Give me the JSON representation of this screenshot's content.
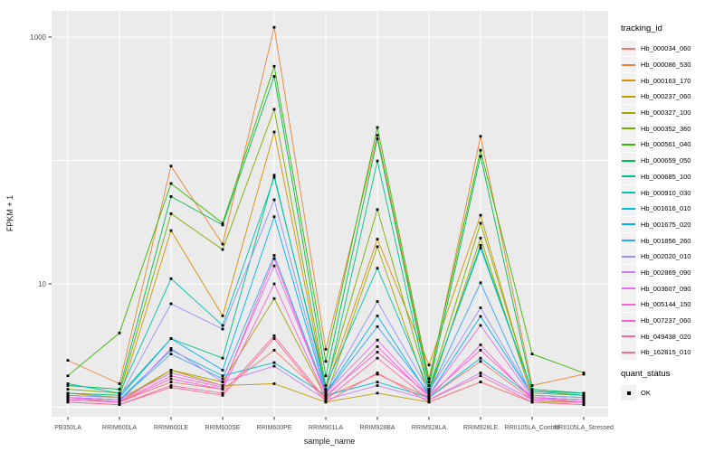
{
  "figure": {
    "y_axis": {
      "label": "FPKM + 1",
      "tick_labels": [
        "1000",
        "10"
      ],
      "tick_values": [
        1000,
        10
      ]
    },
    "x_axis": {
      "label": "sample_name"
    },
    "legend": {
      "title": "tracking_id"
    },
    "quant_legend": {
      "title": "quant_status",
      "ok_label": "OK"
    }
  },
  "colors": {
    "panel_bg": "#EBEBEB",
    "grid": "#FFFFFF",
    "point": "#000000",
    "tick_text": "#4D4D4D",
    "tick_mark": "#333333",
    "legend_key_bg": "#F2F2F2"
  },
  "chart_data": {
    "type": "line",
    "title": "",
    "xlabel": "sample_name",
    "ylabel": "FPKM + 1",
    "y_scale": "log10",
    "ylim": [
      1,
      1300
    ],
    "y_labeled_breaks": [
      10,
      1000
    ],
    "y_gridlines": [
      1,
      10,
      100,
      1000
    ],
    "grid": true,
    "legend_position": "right",
    "point_marker": "black-square",
    "categories": [
      "PB350LA",
      "RRIM600LA",
      "RRIM600LE",
      "RRIM600SE",
      "RRIM600PE",
      "RRIM901LA",
      "RRIM928BA",
      "RRIM928LA",
      "RRIM928LE",
      "RRII105LA_Control",
      "RRII105LA_Stressed"
    ],
    "series": [
      {
        "name": "Hb_000034_060",
        "color": "#F8766D",
        "values": [
          1.2,
          1.1,
          1.6,
          1.4,
          2.9,
          1.2,
          1.85,
          1.2,
          2.35,
          1.15,
          1.1
        ]
      },
      {
        "name": "Hb_000086_530",
        "color": "#EA8331",
        "values": [
          2.4,
          1.55,
          90,
          21,
          1200,
          2.95,
          160,
          1.6,
          157,
          1.5,
          1.85
        ]
      },
      {
        "name": "Hb_000163_170",
        "color": "#D89000",
        "values": [
          1.3,
          1.2,
          27,
          5.5,
          170,
          1.4,
          23,
          2.2,
          36,
          1.25,
          1.2
        ]
      },
      {
        "name": "Hb_000237_060",
        "color": "#C09B00",
        "values": [
          1.15,
          1.1,
          2.0,
          1.5,
          1.55,
          1.1,
          1.3,
          1.1,
          1.6,
          1.1,
          1.1
        ]
      },
      {
        "name": "Hb_000327_100",
        "color": "#A3A500",
        "values": [
          1.2,
          1.15,
          2.0,
          1.6,
          7.6,
          1.2,
          20,
          1.25,
          23.5,
          1.2,
          1.15
        ]
      },
      {
        "name": "Hb_000352_360",
        "color": "#7CAE00",
        "values": [
          1.4,
          1.3,
          37,
          19,
          260,
          1.5,
          40,
          1.4,
          31,
          1.3,
          1.25
        ]
      },
      {
        "name": "Hb_000561_040",
        "color": "#39B600",
        "values": [
          1.8,
          4.0,
          65,
          31,
          580,
          2.35,
          185,
          1.7,
          121,
          2.7,
          1.9
        ]
      },
      {
        "name": "Hb_000659_050",
        "color": "#00BB4E",
        "values": [
          1.5,
          1.4,
          51,
          30,
          480,
          1.8,
          150,
          1.5,
          108,
          1.4,
          1.3
        ]
      },
      {
        "name": "Hb_000685_100",
        "color": "#00C087",
        "values": [
          1.3,
          1.25,
          3.6,
          2.5,
          76,
          1.4,
          99,
          1.35,
          20.5,
          1.35,
          1.3
        ]
      },
      {
        "name": "Hb_000910_030",
        "color": "#00C0AF",
        "values": [
          1.55,
          1.3,
          11,
          4.6,
          73,
          1.5,
          13.4,
          1.4,
          19.5,
          1.35,
          1.25
        ]
      },
      {
        "name": "Hb_001616_010",
        "color": "#00BCD8",
        "values": [
          1.2,
          1.15,
          2.9,
          1.8,
          2.3,
          1.25,
          1.6,
          1.2,
          2.5,
          1.2,
          1.15
        ]
      },
      {
        "name": "Hb_001675_020",
        "color": "#00B0F6",
        "values": [
          1.25,
          1.2,
          3.6,
          2.0,
          35,
          1.3,
          5.5,
          1.25,
          5.45,
          1.25,
          1.2
        ]
      },
      {
        "name": "Hb_001856_260",
        "color": "#35A2FF",
        "values": [
          1.2,
          1.15,
          2.7,
          1.7,
          17,
          1.3,
          4.5,
          1.3,
          10.2,
          1.2,
          1.15
        ]
      },
      {
        "name": "Hb_002020_010",
        "color": "#9590FF",
        "values": [
          1.25,
          1.2,
          6.9,
          4.3,
          48,
          1.35,
          7.2,
          1.35,
          6.4,
          1.25,
          1.2
        ]
      },
      {
        "name": "Hb_002869_090",
        "color": "#C77CFF",
        "values": [
          1.15,
          1.1,
          3.0,
          1.6,
          2.15,
          1.15,
          1.5,
          1.15,
          1.9,
          1.15,
          1.1
        ]
      },
      {
        "name": "Hb_003607_090",
        "color": "#E76BF3",
        "values": [
          1.2,
          1.15,
          1.9,
          1.5,
          14,
          1.3,
          3.5,
          1.25,
          4.6,
          1.2,
          1.15
        ]
      },
      {
        "name": "Hb_005144_150",
        "color": "#FA62DB",
        "values": [
          1.15,
          1.1,
          1.7,
          1.4,
          10,
          1.2,
          3.1,
          1.2,
          3.2,
          1.15,
          1.1
        ]
      },
      {
        "name": "Hb_007237_060",
        "color": "#FF61C3",
        "values": [
          1.2,
          1.1,
          1.8,
          1.45,
          16,
          1.25,
          2.8,
          1.25,
          2.9,
          1.2,
          1.1
        ]
      },
      {
        "name": "Hb_049438_020",
        "color": "#FF67A4",
        "values": [
          1.1,
          1.05,
          1.5,
          1.3,
          3.8,
          1.15,
          2.5,
          1.15,
          1.8,
          1.1,
          1.05
        ]
      },
      {
        "name": "Hb_162815_010",
        "color": "#FF6C91",
        "values": [
          1.1,
          1.05,
          1.45,
          1.25,
          3.6,
          1.1,
          1.9,
          1.1,
          1.6,
          1.1,
          1.05
        ]
      }
    ]
  }
}
